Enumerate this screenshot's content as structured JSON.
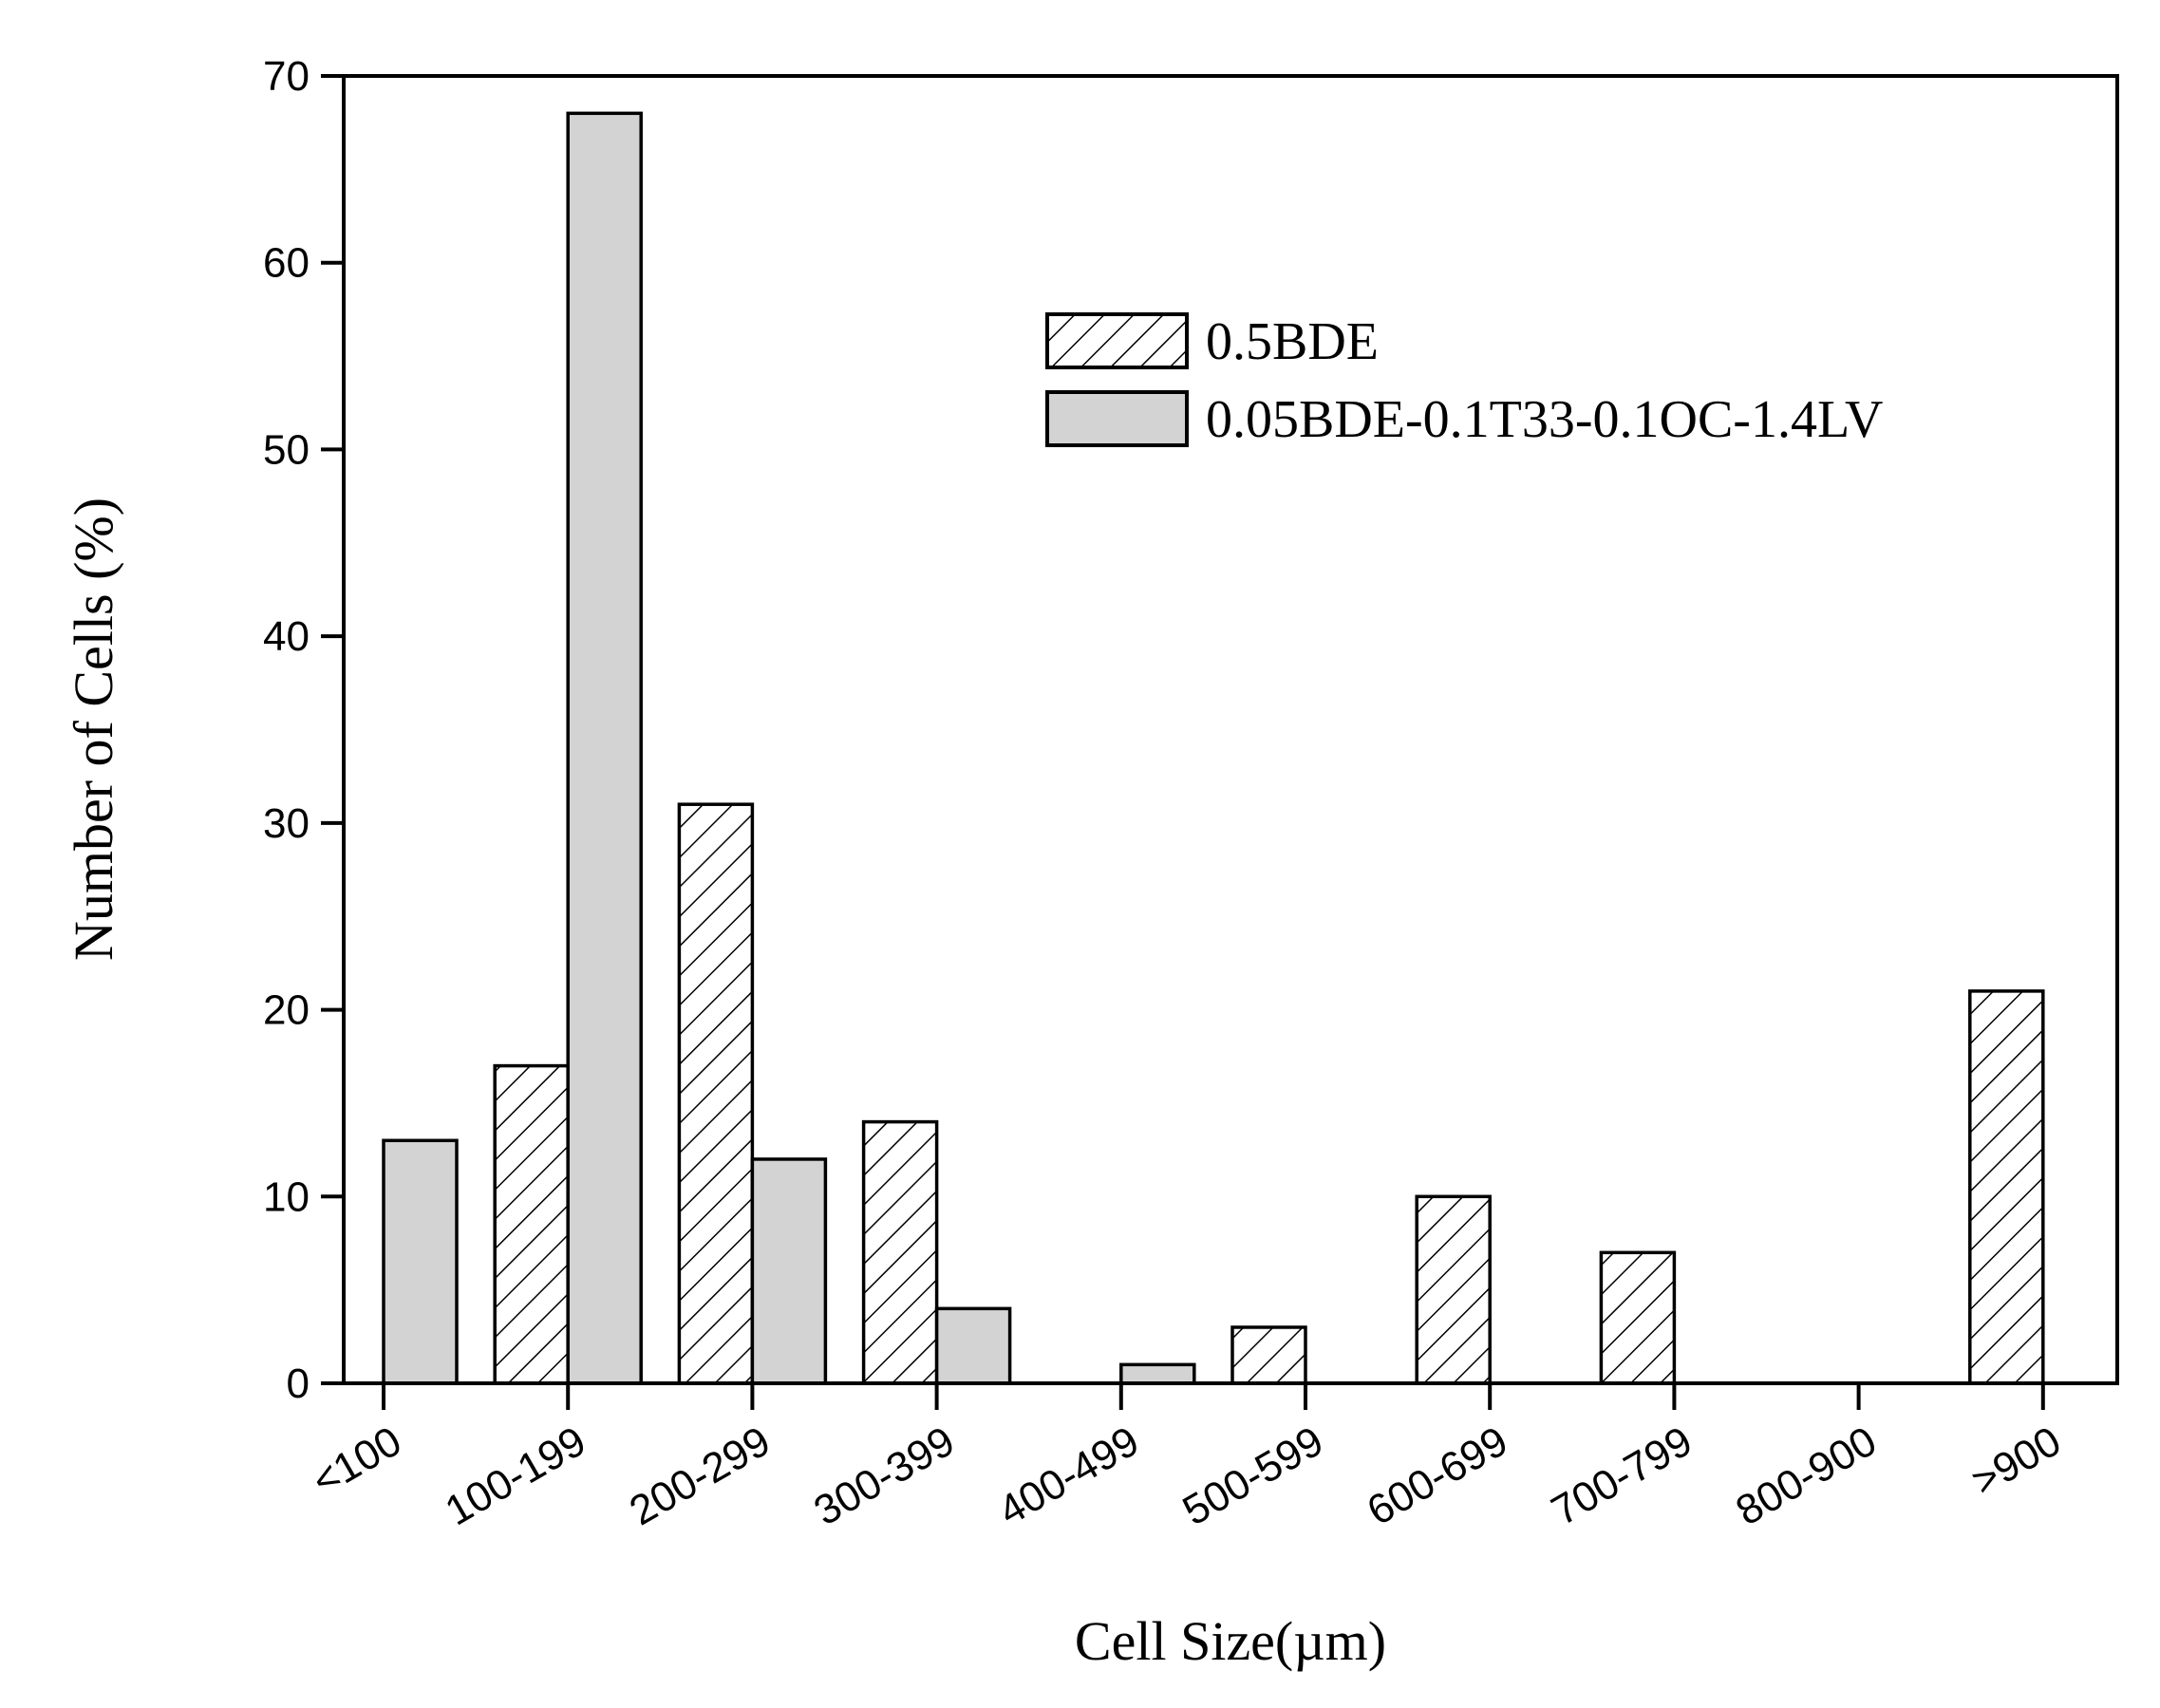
{
  "chart_data": {
    "type": "bar",
    "title": "",
    "xlabel": "Cell Size(µm)",
    "ylabel": "Number of Cells (%)",
    "ylim": [
      0,
      70
    ],
    "yticks": [
      "0",
      "10",
      "20",
      "30",
      "40",
      "50",
      "60",
      "70"
    ],
    "categories": [
      "<100",
      "100-199",
      "200-299",
      "300-399",
      "400-499",
      "500-599",
      "600-699",
      "700-799",
      "800-900",
      ">900"
    ],
    "series": [
      {
        "name": "0.5BDE",
        "fill": "hatched",
        "values": [
          0,
          17,
          31,
          14,
          0,
          3,
          10,
          7,
          0,
          21
        ]
      },
      {
        "name": "0.05BDE-0.1T33-0.1OC-1.4LV",
        "fill": "#d3d3d3",
        "values": [
          13,
          68,
          12,
          4,
          1,
          0,
          0,
          0,
          0,
          0
        ]
      }
    ],
    "legend_position": "top-right",
    "grid": false
  }
}
